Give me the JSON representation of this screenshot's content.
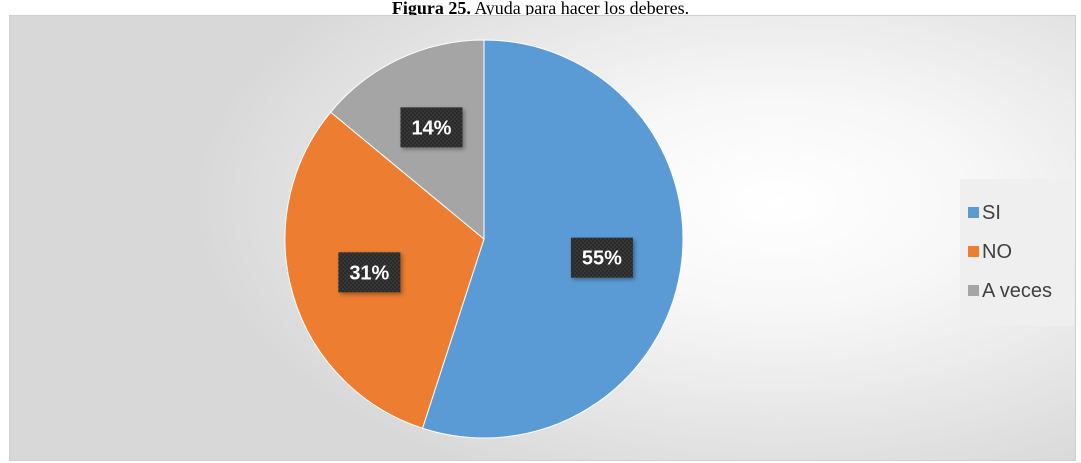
{
  "caption": {
    "label": "Figura 25.",
    "text": " Ayuda para hacer los deberes."
  },
  "chart_data": {
    "type": "pie",
    "categories": [
      "SI",
      "NO",
      "A veces"
    ],
    "values": [
      55,
      31,
      14
    ],
    "data_labels": [
      "55%",
      "31%",
      "14%"
    ],
    "colors": [
      "#5b9bd5",
      "#ed7d31",
      "#a5a5a5"
    ],
    "legend_position": "right",
    "start_angle": "12 o'clock, clockwise"
  }
}
